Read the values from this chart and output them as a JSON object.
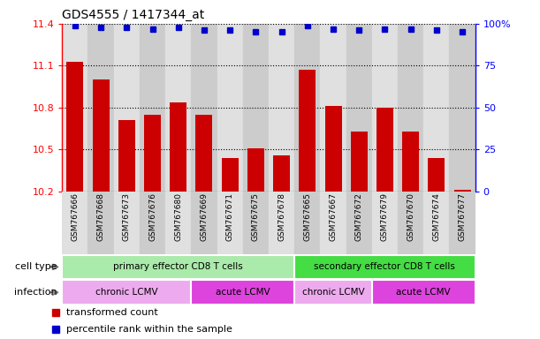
{
  "title": "GDS4555 / 1417344_at",
  "samples": [
    "GSM767666",
    "GSM767668",
    "GSM767673",
    "GSM767676",
    "GSM767680",
    "GSM767669",
    "GSM767671",
    "GSM767675",
    "GSM767678",
    "GSM767665",
    "GSM767667",
    "GSM767672",
    "GSM767679",
    "GSM767670",
    "GSM767674",
    "GSM767677"
  ],
  "bar_values": [
    11.13,
    11.0,
    10.71,
    10.75,
    10.84,
    10.75,
    10.44,
    10.51,
    10.46,
    11.07,
    10.81,
    10.63,
    10.8,
    10.63,
    10.44,
    10.21
  ],
  "percentile_values": [
    99,
    98,
    98,
    97,
    98,
    96,
    96,
    95,
    95,
    99,
    97,
    96,
    97,
    97,
    96,
    95
  ],
  "ylim": [
    10.2,
    11.4
  ],
  "yticks": [
    10.2,
    10.5,
    10.8,
    11.1,
    11.4
  ],
  "right_yticks": [
    0,
    25,
    50,
    75,
    100
  ],
  "bar_color": "#cc0000",
  "dot_color": "#0000cc",
  "cell_type_groups": [
    {
      "label": "primary effector CD8 T cells",
      "start": 0,
      "end": 8,
      "color": "#aaeaaa"
    },
    {
      "label": "secondary effector CD8 T cells",
      "start": 9,
      "end": 15,
      "color": "#44dd44"
    }
  ],
  "infection_groups": [
    {
      "label": "chronic LCMV",
      "start": 0,
      "end": 4,
      "color": "#eeaaee"
    },
    {
      "label": "acute LCMV",
      "start": 5,
      "end": 8,
      "color": "#dd44dd"
    },
    {
      "label": "chronic LCMV",
      "start": 9,
      "end": 11,
      "color": "#eeaaee"
    },
    {
      "label": "acute LCMV",
      "start": 12,
      "end": 15,
      "color": "#dd44dd"
    }
  ],
  "legend_bar_label": "transformed count",
  "legend_dot_label": "percentile rank within the sample",
  "plot_bg_color": "#ffffff",
  "col_colors": [
    "#e0e0e0",
    "#cccccc"
  ]
}
